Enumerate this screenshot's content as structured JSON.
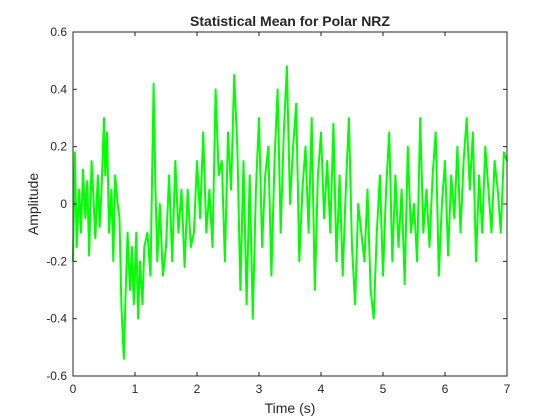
{
  "chart_data": {
    "type": "line",
    "title": "Statistical Mean for Polar NRZ",
    "xlabel": "Time (s)",
    "ylabel": "Amplitude",
    "xlim": [
      0,
      7
    ],
    "ylim": [
      -0.6,
      0.6
    ],
    "xticks": [
      0,
      1,
      2,
      3,
      4,
      5,
      6,
      7
    ],
    "yticks": [
      -0.6,
      -0.4,
      -0.2,
      0,
      0.2,
      0.4,
      0.6
    ],
    "xtick_labels": [
      "0",
      "1",
      "2",
      "3",
      "4",
      "5",
      "6",
      "7"
    ],
    "ytick_labels": [
      "-0.6",
      "-0.4",
      "-0.2",
      "0",
      "0.2",
      "0.4",
      "0.6"
    ],
    "grid": false,
    "box": true,
    "series": [
      {
        "color": "#00ff00",
        "line_width": 2,
        "x": [
          0.0,
          0.03,
          0.06,
          0.1,
          0.13,
          0.16,
          0.2,
          0.23,
          0.26,
          0.3,
          0.33,
          0.36,
          0.4,
          0.43,
          0.46,
          0.5,
          0.52,
          0.55,
          0.58,
          0.62,
          0.65,
          0.68,
          0.72,
          0.75,
          0.78,
          0.8,
          0.82,
          0.85,
          0.88,
          0.92,
          0.95,
          0.98,
          1.02,
          1.05,
          1.08,
          1.12,
          1.15,
          1.2,
          1.25,
          1.3,
          1.33,
          1.36,
          1.4,
          1.45,
          1.5,
          1.55,
          1.6,
          1.65,
          1.7,
          1.75,
          1.8,
          1.85,
          1.9,
          1.95,
          2.0,
          2.05,
          2.1,
          2.15,
          2.2,
          2.25,
          2.3,
          2.35,
          2.4,
          2.45,
          2.5,
          2.55,
          2.6,
          2.65,
          2.7,
          2.75,
          2.8,
          2.85,
          2.9,
          2.95,
          3.0,
          3.05,
          3.1,
          3.15,
          3.2,
          3.25,
          3.3,
          3.35,
          3.4,
          3.45,
          3.5,
          3.55,
          3.6,
          3.65,
          3.7,
          3.75,
          3.8,
          3.85,
          3.9,
          3.95,
          4.0,
          4.05,
          4.1,
          4.15,
          4.2,
          4.25,
          4.3,
          4.35,
          4.4,
          4.45,
          4.5,
          4.55,
          4.6,
          4.65,
          4.7,
          4.75,
          4.8,
          4.85,
          4.9,
          4.95,
          5.0,
          5.05,
          5.1,
          5.15,
          5.2,
          5.25,
          5.3,
          5.35,
          5.4,
          5.45,
          5.5,
          5.55,
          5.6,
          5.65,
          5.7,
          5.75,
          5.8,
          5.85,
          5.9,
          5.95,
          6.0,
          6.05,
          6.1,
          6.15,
          6.2,
          6.25,
          6.3,
          6.35,
          6.4,
          6.45,
          6.5,
          6.55,
          6.6,
          6.65,
          6.7,
          6.75,
          6.8,
          6.85,
          6.9,
          6.95,
          7.0
        ],
        "y": [
          -0.2,
          0.18,
          -0.15,
          0.05,
          -0.1,
          0.12,
          -0.05,
          0.08,
          -0.18,
          0.15,
          0.02,
          -0.12,
          0.1,
          -0.08,
          0.05,
          0.3,
          0.1,
          0.25,
          -0.1,
          0.05,
          -0.2,
          0.1,
          0.0,
          -0.05,
          -0.35,
          -0.45,
          -0.54,
          -0.3,
          -0.1,
          -0.3,
          -0.15,
          -0.35,
          -0.1,
          -0.4,
          -0.2,
          -0.35,
          -0.15,
          -0.1,
          -0.25,
          0.42,
          0.05,
          -0.2,
          0.0,
          -0.25,
          -0.15,
          0.1,
          -0.2,
          0.15,
          -0.1,
          0.05,
          -0.22,
          0.05,
          -0.15,
          -0.1,
          0.15,
          -0.05,
          0.25,
          -0.1,
          0.05,
          -0.15,
          0.4,
          0.1,
          0.15,
          -0.2,
          0.25,
          0.05,
          0.45,
          0.2,
          -0.3,
          0.15,
          -0.35,
          0.1,
          -0.4,
          0.05,
          0.3,
          -0.15,
          0.1,
          0.2,
          -0.25,
          0.15,
          0.4,
          -0.1,
          0.25,
          0.48,
          0.0,
          0.2,
          0.35,
          -0.2,
          0.05,
          0.2,
          -0.1,
          0.3,
          -0.3,
          0.1,
          0.25,
          -0.05,
          0.15,
          -0.1,
          0.28,
          -0.2,
          0.1,
          -0.25,
          0.05,
          0.3,
          -0.15,
          -0.35,
          0.0,
          -0.1,
          -0.2,
          0.05,
          -0.3,
          -0.4,
          -0.1,
          0.1,
          -0.25,
          0.05,
          0.25,
          -0.2,
          0.1,
          -0.15,
          0.05,
          -0.28,
          0.2,
          -0.1,
          0.0,
          -0.2,
          0.3,
          -0.1,
          0.05,
          -0.15,
          0.1,
          0.25,
          -0.25,
          0.0,
          0.15,
          -0.18,
          0.1,
          -0.05,
          0.2,
          -0.1,
          0.15,
          0.3,
          0.05,
          0.25,
          -0.2,
          0.1,
          -0.1,
          0.2,
          0.05,
          -0.1,
          0.15,
          0.05,
          -0.1,
          0.18,
          0.15
        ]
      }
    ]
  }
}
